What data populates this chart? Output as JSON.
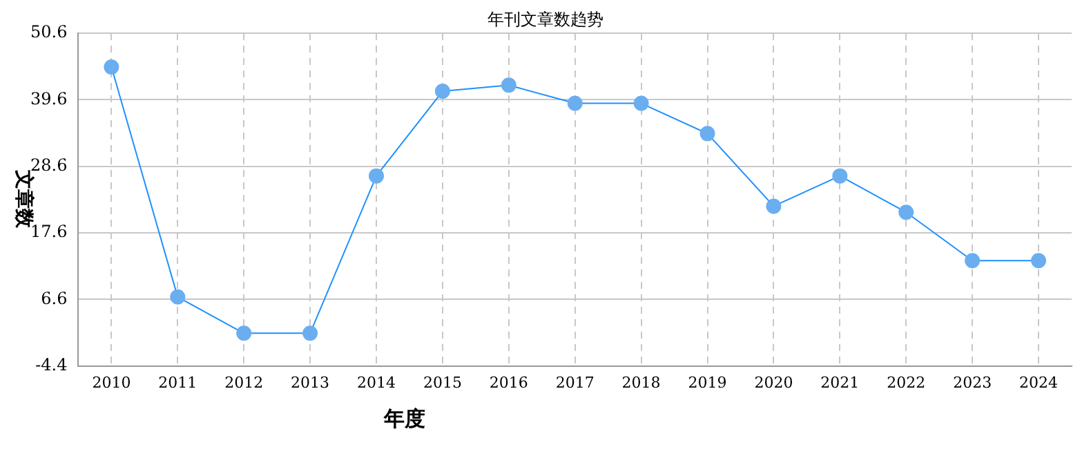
{
  "chart_data": {
    "type": "line",
    "title": "年刊文章数趋势",
    "xlabel": "年度",
    "ylabel": "文章数",
    "categories": [
      "2010",
      "2011",
      "2012",
      "2013",
      "2014",
      "2015",
      "2016",
      "2017",
      "2018",
      "2019",
      "2020",
      "2021",
      "2022",
      "2023",
      "2024"
    ],
    "series": [
      {
        "color": "#1e90ff",
        "values": [
          45,
          7,
          1,
          1,
          27,
          41,
          42,
          39,
          39,
          34,
          22,
          27,
          21,
          13,
          13
        ]
      }
    ],
    "ylim": [
      -4.4,
      50.6
    ],
    "yticks": [
      -4.4,
      6.6,
      17.6,
      28.6,
      39.6,
      50.6
    ],
    "grid": true,
    "legend": false,
    "marker": "circle",
    "line_style": "solid"
  }
}
